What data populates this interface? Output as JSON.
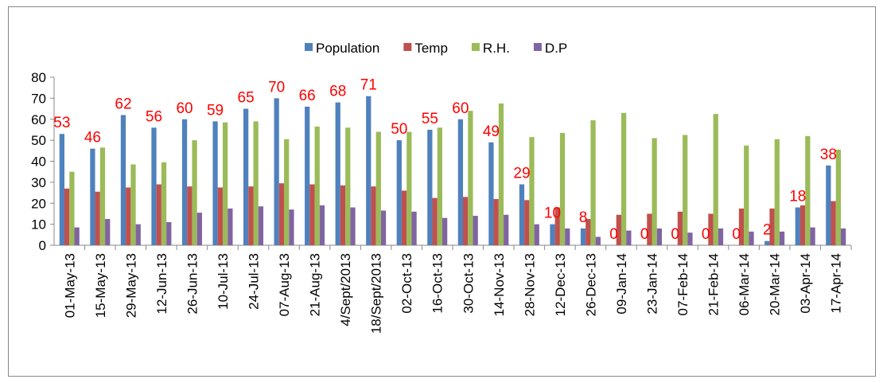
{
  "chart_data": {
    "type": "bar",
    "categories": [
      "01-May-13",
      "15-May-13",
      "29-May-13",
      "12-Jun-13",
      "26-Jun-13",
      "10-Jul-13",
      "24-Jul-13",
      "07-Aug-13",
      "21-Aug-13",
      "4/Sept/2013",
      "18/Sept/2013",
      "02-Oct-13",
      "16-Oct-13",
      "30-Oct-13",
      "14-Nov-13",
      "28-Nov-13",
      "12-Dec-13",
      "26-Dec-13",
      "09-Jan-14",
      "23-Jan-14",
      "07-Feb-14",
      "21-Feb-14",
      "06-Mar-14",
      "20-Mar-14",
      "03-Apr-14",
      "17-Apr-14"
    ],
    "series": [
      {
        "name": "Population",
        "color": "#4f81bd",
        "values": [
          53,
          46,
          62,
          56,
          60,
          59,
          65,
          70,
          66,
          68,
          71,
          50,
          55,
          60,
          49,
          29,
          10,
          8,
          0,
          0,
          0,
          0,
          0,
          2,
          18,
          38
        ]
      },
      {
        "name": "Temp",
        "color": "#c0504d",
        "values": [
          27,
          25.5,
          27.5,
          29,
          28,
          27.5,
          28,
          29.5,
          29,
          28.5,
          28,
          26,
          22.5,
          23,
          22,
          21.5,
          18,
          12.5,
          14.5,
          15,
          16,
          15,
          17.5,
          17.5,
          19,
          21
        ]
      },
      {
        "name": "R.H.",
        "color": "#9bbb59",
        "values": [
          35,
          46.5,
          38.5,
          39.5,
          50,
          58.5,
          59,
          50.5,
          56.5,
          56,
          54,
          54,
          56,
          64,
          67.5,
          51.5,
          53.5,
          59.5,
          63,
          51,
          52.5,
          62.5,
          47.5,
          50.5,
          52,
          45.5
        ]
      },
      {
        "name": "D.P",
        "color": "#8064a2",
        "values": [
          8.5,
          12.5,
          10,
          11,
          15.5,
          17.5,
          18.5,
          17,
          19,
          18,
          16.5,
          16,
          13,
          14,
          14.5,
          10,
          8,
          4,
          7,
          8,
          6,
          8,
          6.5,
          6.5,
          8.5,
          8
        ]
      }
    ],
    "label_color": "#ff0000",
    "ylim": [
      0,
      80
    ],
    "yticks": [
      0,
      10,
      20,
      30,
      40,
      50,
      60,
      70,
      80
    ],
    "grid": false,
    "legend": "top"
  }
}
